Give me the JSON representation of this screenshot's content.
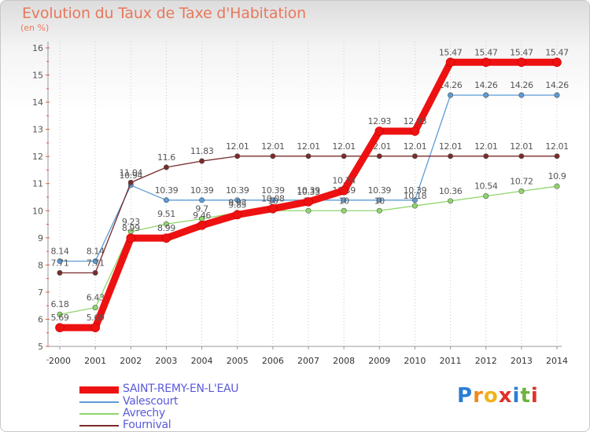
{
  "title": "Evolution du Taux de Taxe d'Habitation",
  "unit_label": "(en %)",
  "brand": {
    "letters": [
      "P",
      "r",
      "o",
      "x",
      "i",
      "t",
      "i"
    ],
    "colors": [
      "#2a7fd4",
      "#f08a1c",
      "#f0b31c",
      "#e0302a",
      "#2a7fd4",
      "#6db33f",
      "#e0302a"
    ]
  },
  "chart_data": {
    "type": "line",
    "x": [
      "2000",
      "2001",
      "2002",
      "2003",
      "2004",
      "2005",
      "2006",
      "2007",
      "2008",
      "2009",
      "2010",
      "2011",
      "2012",
      "2013",
      "2014"
    ],
    "yticks": [
      "5",
      "6",
      "7",
      "8",
      "9",
      "10",
      "11",
      "12",
      "13",
      "14",
      "15",
      "16"
    ],
    "ylim": [
      5,
      16
    ],
    "grid": "vertical-dotted",
    "legend_position": "bottom-left",
    "series": [
      {
        "name": "Valescourt",
        "color": "#5b9bd5",
        "values": [
          8.14,
          8.14,
          10.94,
          10.39,
          10.39,
          10.39,
          10.39,
          10.39,
          10.39,
          10.39,
          10.39,
          14.26,
          14.26,
          14.26,
          14.26
        ],
        "labels": [
          "8.14",
          "8.14",
          "10.94",
          "10.39",
          "10.39",
          "10.39",
          "10.39",
          "10.39",
          "10.39",
          "10.39",
          "10.39",
          "14.26",
          "14.26",
          "14.26",
          "14.26"
        ]
      },
      {
        "name": "Avrechy",
        "color": "#8fd66b",
        "values": [
          6.18,
          6.43,
          9.23,
          9.51,
          9.7,
          9.93,
          10,
          10,
          10,
          10,
          10.18,
          10.36,
          10.54,
          10.72,
          10.9
        ],
        "labels": [
          "6.18",
          "6.43",
          "9.23",
          "9.51",
          "9.7",
          "9.93",
          "10",
          "10",
          "10",
          "10",
          "10.18",
          "10.36",
          "10.54",
          "10.72",
          "10.9"
        ]
      },
      {
        "name": "Fournival",
        "color": "#7a2b2b",
        "values": [
          7.71,
          7.71,
          11.04,
          11.6,
          11.83,
          12.01,
          12.01,
          12.01,
          12.01,
          12.01,
          12.01,
          12.01,
          12.01,
          12.01,
          12.01
        ],
        "labels": [
          "7.71",
          "7.71",
          "11.04",
          "11.6",
          "11.83",
          "12.01",
          "12.01",
          "12.01",
          "12.01",
          "12.01",
          "12.01",
          "12.01",
          "12.01",
          "12.01",
          "12.01"
        ]
      },
      {
        "name": "SAINT-REMY-EN-L'EAU",
        "color": "#ee1111",
        "values": [
          5.69,
          5.69,
          8.99,
          8.99,
          9.46,
          9.85,
          10.08,
          10.33,
          10.74,
          12.93,
          12.93,
          15.47,
          15.47,
          15.47,
          15.47
        ],
        "labels": [
          "5.69",
          "5.69",
          "8.99",
          "8.99",
          "9.46",
          "9.85",
          "10.08",
          "10.33",
          "10.74",
          "12.93",
          "12.93",
          "15.47",
          "15.47",
          "15.47",
          "15.47"
        ]
      }
    ],
    "legend": [
      {
        "name": "SAINT-REMY-EN-L'EAU",
        "color": "#ee1111"
      },
      {
        "name": "Valescourt",
        "color": "#5b9bd5"
      },
      {
        "name": "Avrechy",
        "color": "#8fd66b"
      },
      {
        "name": "Fournival",
        "color": "#7a2b2b"
      }
    ]
  }
}
